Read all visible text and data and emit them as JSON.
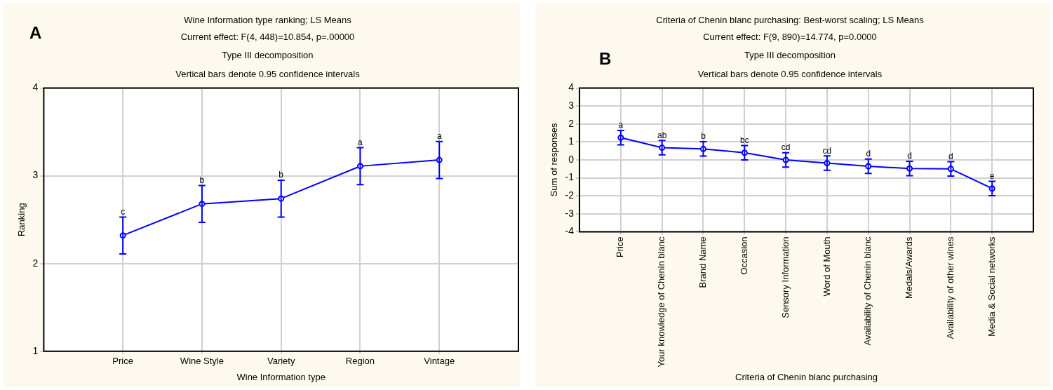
{
  "chart_data": [
    {
      "type": "line",
      "title": "Wine Information type ranking; LS Means",
      "subtitle": "Current effect: F(4, 448)=10.854, p=.00000\nType III decomposition\nVertical bars denote 0.95 confidence intervals",
      "xlabel": "Wine Information type",
      "ylabel": "Ranking",
      "categories": [
        "Price",
        "Wine Style",
        "Variety",
        "Region",
        "Vintage"
      ],
      "series": [
        {
          "color": "#0000ff",
          "values": [
            2.32,
            2.68,
            2.74,
            3.11,
            3.18
          ],
          "errors": [
            0.21,
            0.21,
            0.21,
            0.21,
            0.21
          ]
        }
      ],
      "ylim": [
        1,
        4
      ],
      "yticks": [
        1,
        2,
        3,
        4
      ],
      "grid": true,
      "legend": false,
      "marker": "circle",
      "line_style": "solid",
      "annotations": [
        "A",
        {
          "text": "c",
          "x": "Price",
          "y": 2.53
        },
        {
          "text": "b",
          "x": "Wine Style",
          "y": 2.89
        },
        {
          "text": "b",
          "x": "Variety",
          "y": 2.95
        },
        {
          "text": "a",
          "x": "Region",
          "y": 3.32
        },
        {
          "text": "a",
          "x": "Vintage",
          "y": 3.39
        }
      ]
    },
    {
      "type": "line",
      "title": "Criteria of Chenin blanc purchasing: Best-worst scaling; LS Means",
      "subtitle": "Current effect: F(9, 890)=14.774, p=0.0000\nType III decomposition\nVertical bars denote 0.95 confidence intervals",
      "xlabel": "Criteria of Chenin blanc purchasing",
      "ylabel": "Sum of responses",
      "categories": [
        "Price",
        "Your knowledge of Chenin blanc",
        "Brand Name",
        "Occasion",
        "Sensory Information",
        "Word of Mouth",
        "Availability of Chenin blanc",
        "Medals/Awards",
        "Availability of other wines",
        "Media & Social networks"
      ],
      "series": [
        {
          "color": "#0000ff",
          "values": [
            1.24,
            0.68,
            0.61,
            0.4,
            0.0,
            -0.18,
            -0.35,
            -0.48,
            -0.5,
            -1.59
          ],
          "errors": [
            0.4,
            0.4,
            0.4,
            0.4,
            0.4,
            0.4,
            0.4,
            0.4,
            0.4,
            0.4
          ]
        }
      ],
      "ylim": [
        -4,
        4
      ],
      "yticks": [
        -4,
        -3,
        -2,
        -1,
        0,
        1,
        2,
        3,
        4
      ],
      "grid": true,
      "legend": false,
      "marker": "circle",
      "line_style": "solid",
      "annotations": [
        "B",
        {
          "text": "a",
          "x": "Price",
          "y": 1.64
        },
        {
          "text": "ab",
          "x": "Your knowledge of Chenin blanc",
          "y": 1.08
        },
        {
          "text": "b",
          "x": "Brand Name",
          "y": 1.01
        },
        {
          "text": "bc",
          "x": "Occasion",
          "y": 0.8
        },
        {
          "text": "cd",
          "x": "Sensory Information",
          "y": 0.4
        },
        {
          "text": "cd",
          "x": "Word of Mouth",
          "y": 0.22
        },
        {
          "text": "d",
          "x": "Availability of Chenin blanc",
          "y": 0.05
        },
        {
          "text": "d",
          "x": "Medals/Awards",
          "y": -0.08
        },
        {
          "text": "d",
          "x": "Availability of other wines",
          "y": -0.1
        },
        {
          "text": "e",
          "x": "Media & Social networks",
          "y": -1.19
        }
      ]
    }
  ]
}
